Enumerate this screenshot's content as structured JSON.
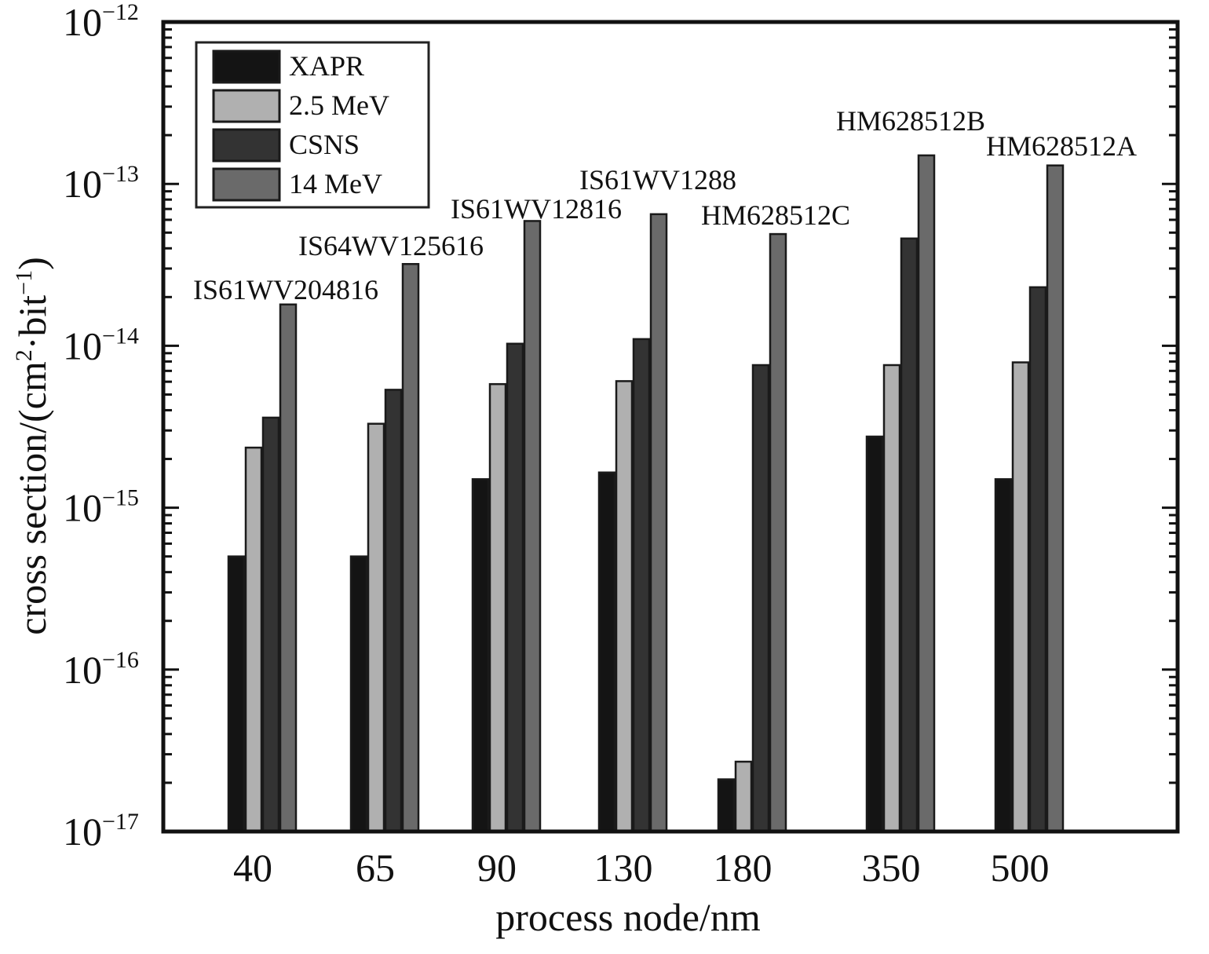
{
  "chart_data": {
    "type": "bar",
    "title": "",
    "xlabel": "process node/nm",
    "ylabel_parts": {
      "pre": "cross section/(cm",
      "sup1": "2",
      "mid": "·bit",
      "sup2": "−1",
      "post": ")"
    },
    "yscale": "log",
    "ylim": [
      1e-17,
      1e-12
    ],
    "y_ticks": [
      {
        "base": "10",
        "exp": "−12",
        "value": 1e-12
      },
      {
        "base": "10",
        "exp": "−13",
        "value": 1e-13
      },
      {
        "base": "10",
        "exp": "−14",
        "value": 1e-14
      },
      {
        "base": "10",
        "exp": "−15",
        "value": 1e-15
      },
      {
        "base": "10",
        "exp": "−16",
        "value": 1e-16
      },
      {
        "base": "10",
        "exp": "−17",
        "value": 1e-17
      }
    ],
    "categories": [
      "40",
      "65",
      "90",
      "130",
      "180",
      "350",
      "500"
    ],
    "devices": [
      "IS61WV204816",
      "IS64WV125616",
      "IS61WV12816",
      "IS61WV1288",
      "HM628512C",
      "HM628512B",
      "HM628512A"
    ],
    "legend_position": "top-left",
    "series": [
      {
        "name": "XAPR",
        "color": "#141414",
        "values": [
          5e-16,
          5e-16,
          1.5e-15,
          1.65e-15,
          2.1e-17,
          2.75e-15,
          1.5e-15
        ]
      },
      {
        "name": "2.5 MeV",
        "color": "#b0b0b0",
        "values": [
          2.35e-15,
          3.3e-15,
          5.8e-15,
          6.05e-15,
          2.7e-17,
          7.6e-15,
          7.9e-15
        ]
      },
      {
        "name": "CSNS",
        "color": "#333333",
        "values": [
          3.6e-15,
          5.35e-15,
          1.03e-14,
          1.1e-14,
          7.6e-15,
          4.6e-14,
          2.3e-14
        ]
      },
      {
        "name": "14 MeV",
        "color": "#6a6a6a",
        "values": [
          1.8e-14,
          3.2e-14,
          5.9e-14,
          6.5e-14,
          4.9e-14,
          1.5e-13,
          1.3e-13
        ]
      }
    ]
  }
}
